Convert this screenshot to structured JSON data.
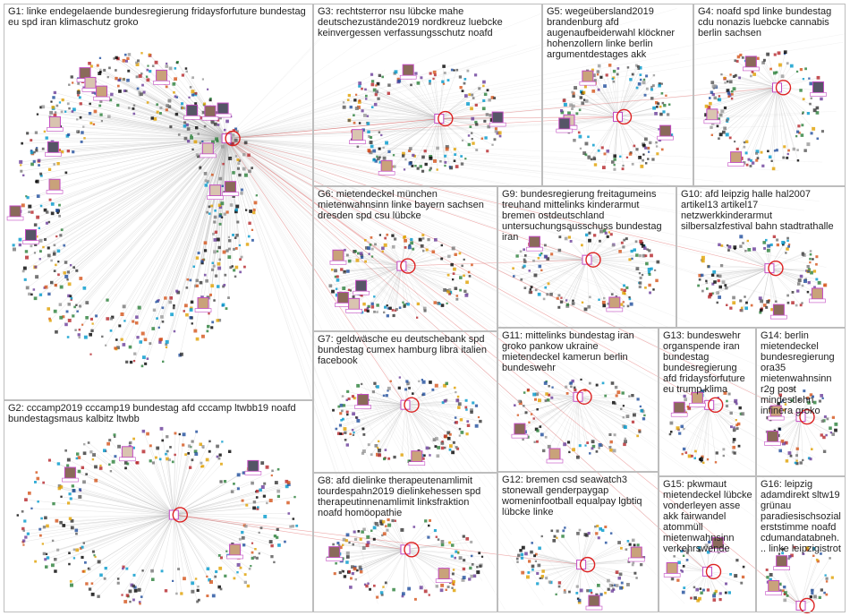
{
  "graph": {
    "background": "#ffffff",
    "box_border_color": "#bdbdbd",
    "edge_color": "#b9b9b9",
    "cross_edge_color": "#d94040",
    "self_loop_color": "#dd2222",
    "highlight_border_color": "#c24bc2",
    "groups": [
      {
        "id": "G1",
        "label": "G1: linke endegelaende bundesregierung fridaysforfuture bundestag eu spd iran klimaschutz groko"
      },
      {
        "id": "G2",
        "label": "G2: cccamp2019 cccamp19 bundestag afd cccamp ltwbb19 noafd bundestagsmaus kalbitz ltwbb"
      },
      {
        "id": "G3",
        "label": "G3: rechtsterror nsu lübcke mahe deutschezustände2019 nordkreuz luebcke keinvergessen verfassungsschutz noafd"
      },
      {
        "id": "G4",
        "label": "G4: noafd spd linke bundestag cdu nonazis luebcke cannabis berlin sachsen"
      },
      {
        "id": "G5",
        "label": "G5: wegeübersland2019 brandenburg afd augenaufbeiderwahl klöckner hohenzollern linke berlin argumentdestages akk"
      },
      {
        "id": "G6",
        "label": "G6: mietendeckel münchen mietenwahnsinn linke bayern sachsen dresden spd csu lübcke"
      },
      {
        "id": "G7",
        "label": "G7: geldwäsche eu deutschebank spd bundestag cumex hamburg libra italien facebook"
      },
      {
        "id": "G8",
        "label": "G8: afd dielinke therapeutenamlimit tourdespahn2019 dielinkehessen spd therapeutinnenamlimit linksfraktion noafd homöopathie"
      },
      {
        "id": "G9",
        "label": "G9: bundesregierung freitagumeins treuhand mittelinks kinderarmut bremen ostdeutschland untersuchungsausschuss bundestag iran"
      },
      {
        "id": "G10",
        "label": "G10: afd leipzig halle hal2007 artikel13 artikel17 netzwerkkinderarmut silbersalzfestival bahn stadtrathalle"
      },
      {
        "id": "G11",
        "label": "G11: mittelinks bundestag iran groko pankow ukraine mietendeckel kamerun berlin bundeswehr"
      },
      {
        "id": "G12",
        "label": "G12: bremen csd seawatch3 stonewall genderpaygap womeninfootball equalpay lgbtiq lübcke linke"
      },
      {
        "id": "G13",
        "label": "G13: bundeswehr organspende iran bundestag bundesregierung afd fridaysforfuture eu trump klima"
      },
      {
        "id": "G14",
        "label": "G14: berlin mietendeckel bundesregierung ora35 mietenwahnsinn r2g post mindestlohn infinera groko"
      },
      {
        "id": "G15",
        "label": "G15: pkwmaut mietendeckel lübcke vonderleyen asse akk fairwandel atommüll mietenwahnsinn verkehrswende"
      },
      {
        "id": "G16",
        "label": "G16: leipzig adamdirekt sltw19 grünau paradiesischsozial erststimme noafd cdumandatabneh... linke leipzigistrot"
      }
    ]
  }
}
